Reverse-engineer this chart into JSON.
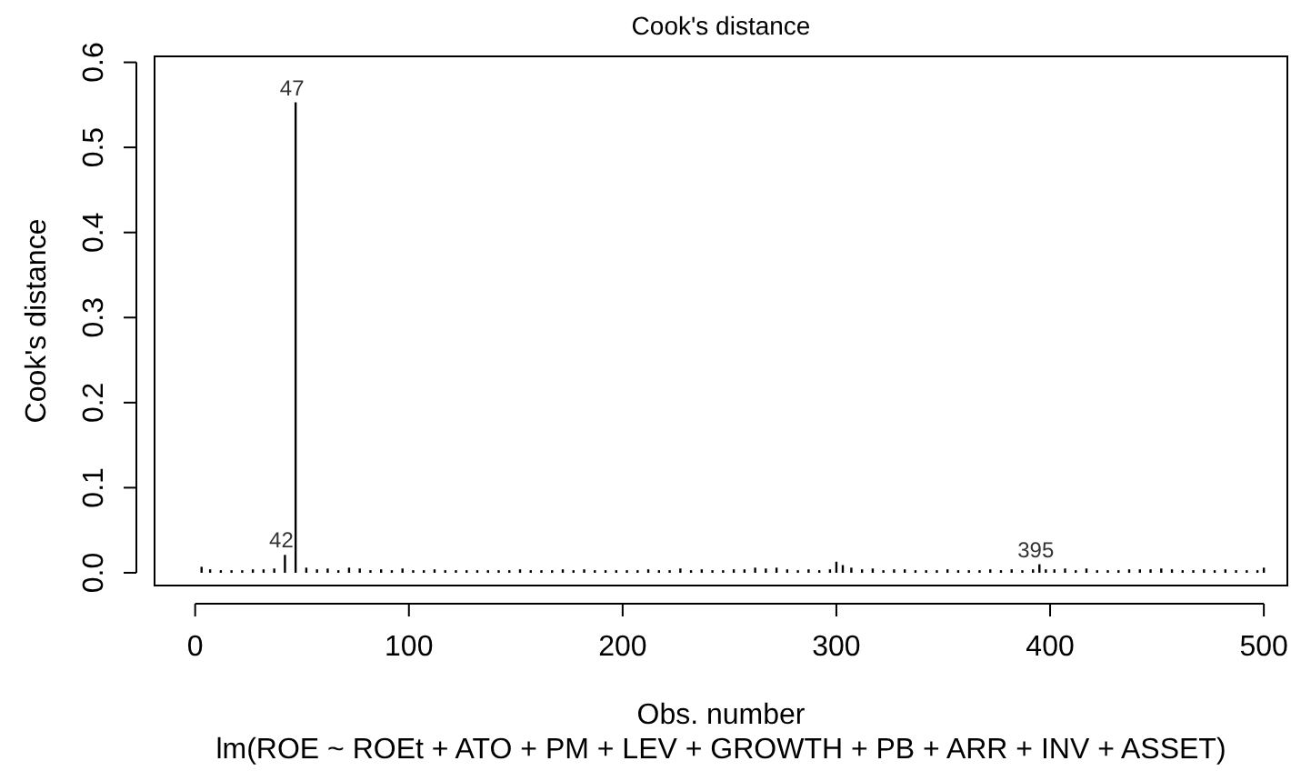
{
  "chart_data": {
    "type": "bar",
    "title": "Cook's distance",
    "xlabel": "Obs. number",
    "ylabel": "Cook's distance",
    "subtitle": "lm(ROE ~ ROEt + ATO + PM + LEV + GROWTH + PB + ARR + INV + ASSET)",
    "x": [
      3,
      7,
      12,
      17,
      22,
      27,
      32,
      37,
      42,
      47,
      52,
      57,
      62,
      67,
      72,
      77,
      82,
      87,
      92,
      97,
      102,
      107,
      112,
      117,
      122,
      127,
      132,
      137,
      142,
      147,
      152,
      157,
      162,
      167,
      172,
      177,
      182,
      187,
      192,
      197,
      202,
      207,
      212,
      217,
      222,
      227,
      232,
      237,
      242,
      247,
      252,
      257,
      262,
      267,
      272,
      277,
      282,
      287,
      292,
      297,
      300,
      303,
      307,
      312,
      317,
      322,
      327,
      332,
      337,
      342,
      347,
      352,
      357,
      362,
      367,
      372,
      377,
      382,
      387,
      392,
      395,
      398,
      402,
      407,
      412,
      417,
      422,
      427,
      432,
      437,
      442,
      447,
      452,
      457,
      462,
      467,
      472,
      477,
      482,
      487,
      492,
      497,
      500
    ],
    "values": [
      0.007,
      0.004,
      0.003,
      0.003,
      0.003,
      0.004,
      0.004,
      0.005,
      0.021,
      0.553,
      0.006,
      0.004,
      0.005,
      0.003,
      0.006,
      0.005,
      0.003,
      0.004,
      0.003,
      0.005,
      0.003,
      0.003,
      0.004,
      0.003,
      0.003,
      0.003,
      0.003,
      0.003,
      0.003,
      0.003,
      0.004,
      0.003,
      0.003,
      0.003,
      0.004,
      0.003,
      0.004,
      0.003,
      0.003,
      0.003,
      0.003,
      0.003,
      0.004,
      0.003,
      0.003,
      0.005,
      0.003,
      0.004,
      0.003,
      0.003,
      0.004,
      0.004,
      0.006,
      0.005,
      0.006,
      0.004,
      0.003,
      0.004,
      0.003,
      0.004,
      0.013,
      0.009,
      0.006,
      0.004,
      0.005,
      0.003,
      0.004,
      0.004,
      0.003,
      0.003,
      0.003,
      0.004,
      0.003,
      0.003,
      0.003,
      0.004,
      0.003,
      0.004,
      0.003,
      0.004,
      0.01,
      0.004,
      0.004,
      0.005,
      0.003,
      0.005,
      0.003,
      0.003,
      0.003,
      0.004,
      0.004,
      0.004,
      0.005,
      0.004,
      0.003,
      0.003,
      0.004,
      0.003,
      0.004,
      0.003,
      0.003,
      0.003,
      0.006
    ],
    "color": "#000000",
    "xlim": [
      -19,
      511
    ],
    "xticks": [
      0,
      100,
      200,
      300,
      400,
      500
    ],
    "ylim": [
      -0.015,
      0.607
    ],
    "yticks": [
      {
        "value": 0,
        "label": "0.0"
      },
      {
        "value": 0.1,
        "label": "0.1"
      },
      {
        "value": 0.2,
        "label": "0.2"
      },
      {
        "value": 0.3,
        "label": "0.3"
      },
      {
        "value": 0.4,
        "label": "0.4"
      },
      {
        "value": 0.5,
        "label": "0.5"
      },
      {
        "value": 0.6,
        "label": "0.6"
      }
    ],
    "annotations": [
      {
        "text": "47",
        "x": 47,
        "y": 0.553
      },
      {
        "text": "42",
        "x": 42,
        "y": 0.021
      },
      {
        "text": "395",
        "x": 395,
        "y": 0.01
      }
    ]
  }
}
